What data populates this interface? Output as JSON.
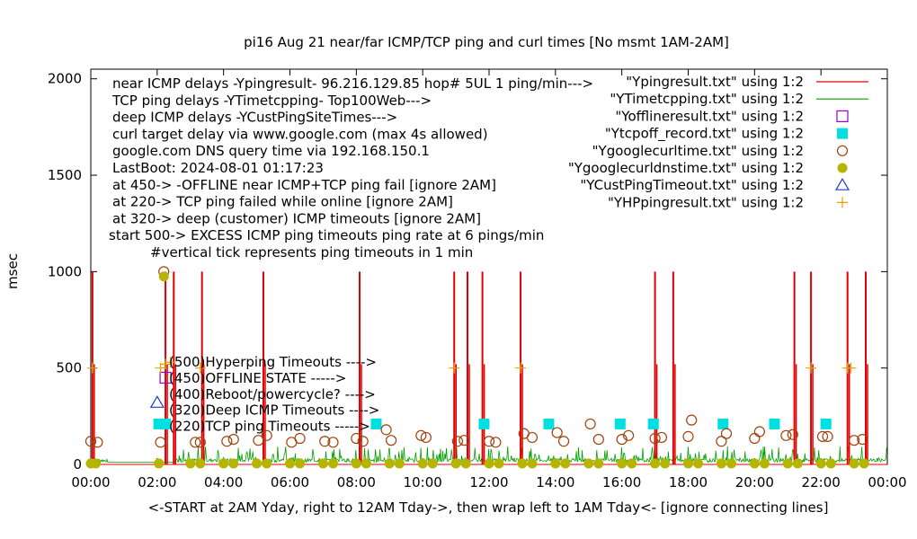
{
  "chart_data": {
    "type": "scatter",
    "title": "pi16 Aug 21  near/far ICMP/TCP ping and curl times [No msmt 1AM-2AM]",
    "xlabel": "<-START at 2AM Yday, right to 12AM Tday->, then wrap left to 1AM Tday<- [ignore connecting lines]",
    "ylabel": "msec",
    "xlim": [
      0,
      24
    ],
    "ylim": [
      0,
      2050
    ],
    "xticks": [
      0,
      2,
      4,
      6,
      8,
      10,
      12,
      14,
      16,
      18,
      20,
      22,
      24
    ],
    "xtick_labels": [
      "00:00",
      "02:00",
      "04:00",
      "06:00",
      "08:00",
      "10:00",
      "12:00",
      "14:00",
      "16:00",
      "18:00",
      "20:00",
      "22:00",
      "00:00"
    ],
    "yticks": [
      0,
      500,
      1000,
      1500,
      2000
    ],
    "ytick_labels": [
      "0",
      "500",
      "1000",
      "1500",
      "2000"
    ],
    "grid": false,
    "legend_position": "top-right",
    "notes": [
      "near ICMP delays -Ypingresult- 96.216.129.85 hop# 5UL 1 ping/min--->",
      "TCP ping delays -YTimetcpping- Top100Web--->",
      "deep ICMP delays -YCustPingSiteTimes--->",
      "curl target delay via www.google.com (max 4s allowed)",
      "google.com DNS query time via 192.168.150.1",
      "LastBoot: 2024-08-01 01:17:23",
      "at 450-> -OFFLINE near ICMP+TCP ping fail [ignore 2AM]",
      "at 220-> TCP ping failed while online [ignore 2AM]",
      "at 320-> deep (customer) ICMP timeouts [ignore 2AM]",
      "start 500-> EXCESS ICMP ping timeouts ping rate at 6 pings/min",
      "#vertical tick represents ping timeouts in 1 min"
    ],
    "marker_labels": [
      {
        "text": "(500)Hyperping Timeouts ---->",
        "y": 530
      },
      {
        "text": "(450)OFFLINE STATE ----->",
        "y": 450
      },
      {
        "text": "(400)Reboot/powercycle? ---->",
        "y": 370
      },
      {
        "text": "(320)Deep ICMP Timeouts ---->",
        "y": 290
      },
      {
        "text": "(220)TCP ping Timeouts ----->",
        "y": 210
      }
    ],
    "series": [
      {
        "name": "\"Ypingresult.txt\" using 1:2",
        "style": "line",
        "color": "#e00000",
        "spike_times": [
          0.05,
          2.25,
          2.5,
          3.35,
          5.2,
          8.1,
          10.95,
          11.35,
          11.8,
          12.95,
          17.0,
          17.55,
          21.2,
          21.7,
          22.8,
          23.35
        ],
        "spike_values": [
          1000,
          1000,
          1000,
          1000,
          1000,
          1000,
          1000,
          1000,
          1000,
          1000,
          1000,
          1000,
          1000,
          1000,
          1000,
          1000
        ]
      },
      {
        "name": "\"YTimetcpping.txt\" using 1:2",
        "style": "line",
        "color": "#00a000",
        "baseline": 12,
        "noise_max": 95
      },
      {
        "name": "\"Yofflineresult.txt\" using 1:2",
        "style": "open-square",
        "color": "#9400d3",
        "x": [
          2.25
        ],
        "y": [
          450
        ]
      },
      {
        "name": "\"Ytcpoff_record.txt\" using 1:2",
        "style": "filled-square",
        "color": "#00e0e0",
        "x": [
          2.05,
          2.25,
          8.6,
          11.85,
          13.8,
          15.95,
          16.95,
          19.05,
          20.6,
          22.15
        ],
        "y": [
          210,
          210,
          210,
          210,
          210,
          210,
          210,
          210,
          210,
          210
        ]
      },
      {
        "name": "\"Ygooglecurltime.txt\" using 1:2",
        "style": "open-circle",
        "color": "#a0400a",
        "x": [
          0.0,
          0.2,
          2.1,
          2.2,
          3.15,
          3.3,
          4.1,
          4.3,
          5.05,
          5.3,
          6.05,
          6.3,
          7.05,
          7.3,
          8.0,
          8.2,
          8.9,
          9.05,
          9.95,
          10.1,
          11.05,
          11.25,
          12.0,
          12.2,
          13.05,
          13.3,
          14.05,
          14.25,
          15.05,
          15.3,
          16.0,
          16.2,
          17.0,
          17.2,
          18.0,
          18.1,
          19.0,
          19.15,
          20.0,
          20.15,
          20.95,
          21.15,
          22.05,
          22.2,
          23.0,
          23.25
        ],
        "y": [
          120,
          115,
          115,
          1000,
          115,
          115,
          120,
          130,
          125,
          150,
          115,
          135,
          120,
          115,
          135,
          120,
          180,
          125,
          150,
          140,
          120,
          125,
          120,
          115,
          160,
          140,
          165,
          120,
          210,
          130,
          130,
          150,
          135,
          140,
          145,
          230,
          120,
          160,
          135,
          170,
          150,
          155,
          145,
          145,
          125,
          130
        ]
      },
      {
        "name": "\"Ygooglecurldnstime.txt\" using 1:2",
        "style": "filled-circle",
        "color": "#b5b500",
        "x": [
          0.0,
          0.15,
          2.05,
          2.2,
          3.0,
          3.3,
          4.0,
          4.3,
          5.0,
          5.3,
          6.0,
          6.3,
          7.0,
          7.3,
          8.0,
          8.3,
          9.0,
          9.3,
          10.0,
          10.3,
          11.0,
          11.3,
          12.0,
          12.3,
          13.0,
          13.3,
          14.0,
          14.3,
          15.0,
          15.3,
          16.0,
          16.3,
          17.0,
          17.3,
          18.0,
          18.3,
          19.0,
          19.3,
          20.0,
          20.3,
          21.0,
          21.3,
          22.0,
          22.3,
          23.0,
          23.3
        ],
        "y": [
          5,
          5,
          5,
          975,
          5,
          5,
          5,
          5,
          5,
          5,
          5,
          5,
          5,
          5,
          5,
          5,
          5,
          5,
          5,
          5,
          5,
          5,
          5,
          5,
          5,
          5,
          5,
          5,
          5,
          5,
          5,
          5,
          5,
          5,
          5,
          5,
          5,
          5,
          5,
          5,
          5,
          5,
          5,
          5,
          5,
          5
        ]
      },
      {
        "name": "\"YCustPingTimeout.txt\" using 1:2",
        "style": "open-triangle",
        "color": "#1f3fbf",
        "x": [
          2.0
        ],
        "y": [
          320
        ]
      },
      {
        "name": "\"YHPpingresult.txt\" using 1:2",
        "style": "plus",
        "color": "#e8a000",
        "x": [
          0.05,
          2.1,
          2.25,
          2.4,
          3.3,
          10.95,
          12.95,
          21.7,
          22.8,
          22.9
        ],
        "y": [
          500,
          500,
          520,
          530,
          500,
          500,
          500,
          500,
          500,
          500
        ]
      }
    ]
  }
}
